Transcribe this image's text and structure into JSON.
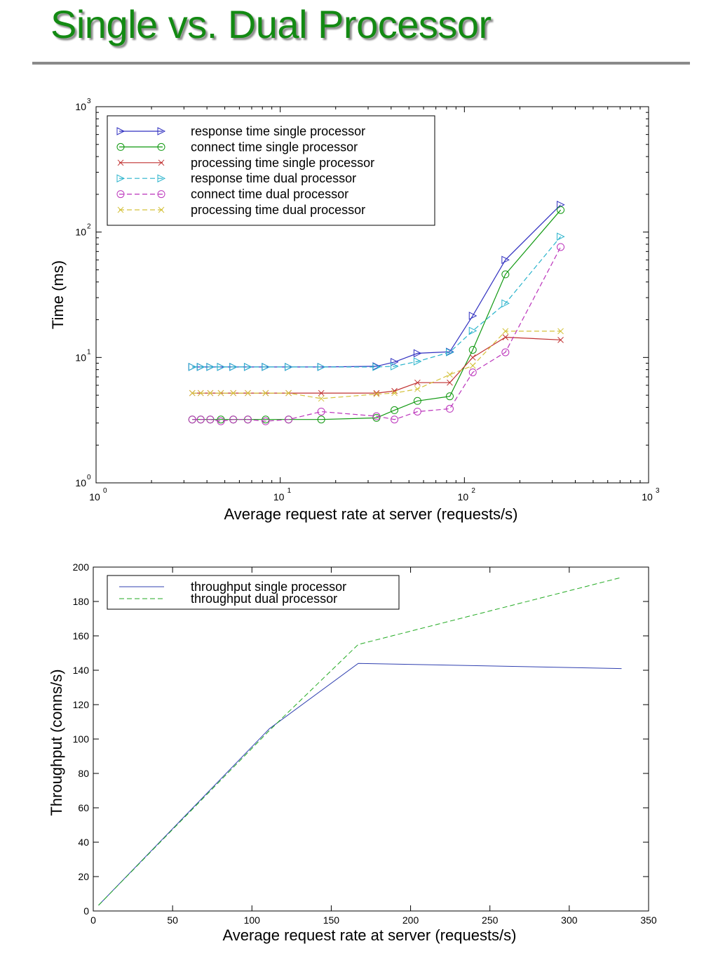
{
  "slide": {
    "title": "Single vs. Dual Processor"
  },
  "chart_data": [
    {
      "type": "line",
      "xscale": "log",
      "yscale": "log",
      "xlim": [
        1,
        1000
      ],
      "ylim": [
        1,
        1000
      ],
      "xlabel": "Average request rate at server (requests/s)",
      "ylabel": "Time (ms)",
      "xticks": [
        {
          "base": "10",
          "exp": "0"
        },
        {
          "base": "10",
          "exp": "1"
        },
        {
          "base": "10",
          "exp": "2"
        },
        {
          "base": "10",
          "exp": "3"
        }
      ],
      "yticks": [
        {
          "base": "10",
          "exp": "0"
        },
        {
          "base": "10",
          "exp": "1"
        },
        {
          "base": "10",
          "exp": "2"
        },
        {
          "base": "10",
          "exp": "3"
        }
      ],
      "grid": false,
      "legend_position": "top-left",
      "series": [
        {
          "name": "response time single processor",
          "color": "#3030c0",
          "dash": "solid",
          "marker": "triangle-right",
          "x": [
            3.33,
            3.7,
            4.17,
            4.76,
            5.56,
            6.67,
            8.33,
            11.1,
            16.7,
            33.3,
            41.7,
            55.6,
            83.3,
            111,
            167,
            333
          ],
          "y": [
            8.4,
            8.4,
            8.4,
            8.4,
            8.4,
            8.4,
            8.4,
            8.4,
            8.4,
            8.5,
            9.2,
            10.8,
            11.1,
            21.5,
            60,
            165
          ]
        },
        {
          "name": "connect time single processor",
          "color": "#119911",
          "dash": "solid",
          "marker": "circle",
          "x": [
            3.33,
            3.7,
            4.17,
            4.76,
            5.56,
            6.67,
            8.33,
            11.1,
            16.7,
            33.3,
            41.7,
            55.6,
            83.3,
            111,
            167,
            333
          ],
          "y": [
            3.2,
            3.2,
            3.2,
            3.2,
            3.2,
            3.2,
            3.2,
            3.2,
            3.2,
            3.3,
            3.8,
            4.5,
            4.9,
            11.5,
            46,
            150
          ]
        },
        {
          "name": "processing time single processor",
          "color": "#c03030",
          "dash": "solid",
          "marker": "x",
          "x": [
            3.33,
            3.7,
            4.17,
            4.76,
            5.56,
            6.67,
            8.33,
            11.1,
            16.7,
            33.3,
            41.7,
            55.6,
            83.3,
            111,
            167,
            333
          ],
          "y": [
            5.2,
            5.2,
            5.2,
            5.2,
            5.2,
            5.2,
            5.2,
            5.2,
            5.2,
            5.2,
            5.4,
            6.3,
            6.3,
            10,
            14.5,
            13.8
          ]
        },
        {
          "name": "response time dual processor",
          "color": "#29b3cc",
          "dash": "dashed",
          "marker": "triangle-right",
          "x": [
            3.33,
            3.7,
            4.17,
            4.76,
            5.56,
            6.67,
            8.33,
            11.1,
            16.7,
            33.3,
            41.7,
            55.6,
            83.3,
            111,
            167,
            333
          ],
          "y": [
            8.4,
            8.4,
            8.4,
            8.4,
            8.4,
            8.4,
            8.4,
            8.4,
            8.4,
            8.4,
            8.5,
            9.3,
            11,
            16.3,
            27,
            92
          ]
        },
        {
          "name": "connect time dual processor",
          "color": "#bb33bb",
          "dash": "dashed",
          "marker": "circle",
          "x": [
            3.33,
            3.7,
            4.17,
            4.76,
            5.56,
            6.67,
            8.33,
            11.1,
            16.7,
            33.3,
            41.7,
            55.6,
            83.3,
            111,
            167,
            333
          ],
          "y": [
            3.2,
            3.2,
            3.2,
            3.1,
            3.2,
            3.2,
            3.1,
            3.2,
            3.7,
            3.4,
            3.2,
            3.7,
            3.9,
            7.6,
            11,
            76
          ]
        },
        {
          "name": "processing time dual processor",
          "color": "#d4c23a",
          "dash": "dashed",
          "marker": "x",
          "x": [
            3.33,
            3.7,
            4.17,
            4.76,
            5.56,
            6.67,
            8.33,
            11.1,
            16.7,
            33.3,
            41.7,
            55.6,
            83.3,
            111,
            167,
            333
          ],
          "y": [
            5.2,
            5.2,
            5.2,
            5.2,
            5.2,
            5.2,
            5.2,
            5.2,
            4.7,
            5.1,
            5.2,
            5.6,
            7.3,
            8.6,
            16.2,
            16.2
          ]
        }
      ]
    },
    {
      "type": "line",
      "xlim": [
        0,
        350
      ],
      "ylim": [
        0,
        200
      ],
      "xlabel": "Average request rate at server (requests/s)",
      "ylabel": "Throughput (conns/s)",
      "xticks": [
        "0",
        "50",
        "100",
        "150",
        "200",
        "250",
        "300",
        "350"
      ],
      "yticks": [
        "0",
        "20",
        "40",
        "60",
        "80",
        "100",
        "120",
        "140",
        "160",
        "180",
        "200"
      ],
      "grid": false,
      "legend_position": "top-left",
      "series": [
        {
          "name": "throughput single processor",
          "color": "#3040b0",
          "dash": "solid",
          "x": [
            3.33,
            111,
            167,
            333
          ],
          "y": [
            3.3,
            106,
            144,
            141
          ]
        },
        {
          "name": "throughput dual processor",
          "color": "#22aa22",
          "dash": "dashed",
          "x": [
            3.33,
            111,
            167,
            333
          ],
          "y": [
            3.3,
            105,
            155,
            194
          ]
        }
      ]
    }
  ]
}
